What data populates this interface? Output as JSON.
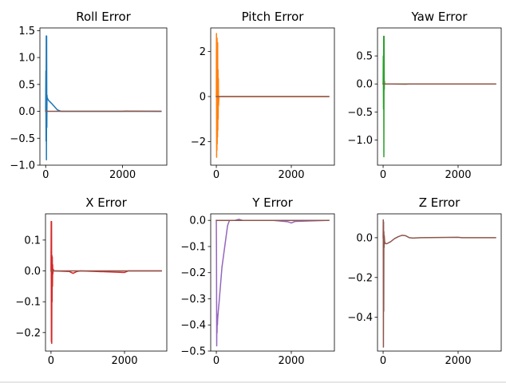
{
  "chart_data": [
    {
      "type": "line",
      "title": "Roll Error",
      "xlim": [
        -150,
        3150
      ],
      "ylim": [
        -1.0,
        1.55
      ],
      "xticks": [
        0,
        2000
      ],
      "yticks": [
        -1.0,
        -0.5,
        0.0,
        0.5,
        1.0,
        1.5
      ],
      "ytick_labels": [
        "−1.0",
        "−0.5",
        "0.0",
        "0.5",
        "1.0",
        "1.5"
      ],
      "series": [
        {
          "color": "#1f77b4",
          "x": [
            0,
            5,
            10,
            15,
            20,
            25,
            30,
            35,
            40,
            45,
            50,
            60,
            80,
            150,
            300,
            400,
            3000
          ],
          "y": [
            0,
            0.75,
            -0.55,
            1.4,
            -0.9,
            1.4,
            -0.3,
            0.3,
            0.25,
            0.25,
            0.24,
            0.22,
            0.2,
            0.15,
            0.03,
            0.0,
            0.0
          ]
        },
        {
          "color": "#8c564b",
          "x": [
            0,
            500,
            1000,
            2000,
            2050,
            3000
          ],
          "y": [
            0.0,
            0.0,
            0.0,
            0.0,
            0.005,
            0.0
          ]
        }
      ]
    },
    {
      "type": "line",
      "title": "Pitch Error",
      "xlim": [
        -150,
        3150
      ],
      "ylim": [
        -3.05,
        3.05
      ],
      "xticks": [
        0,
        2000
      ],
      "yticks": [
        -2,
        0,
        2
      ],
      "ytick_labels": [
        "−2",
        "0",
        "2"
      ],
      "series": [
        {
          "color": "#ff7f0e",
          "x": [
            0,
            4,
            8,
            12,
            16,
            20,
            24,
            28,
            32,
            36,
            40,
            45,
            50,
            55,
            60,
            70,
            3000
          ],
          "y": [
            0,
            2.8,
            -2.7,
            2.5,
            -2.4,
            2.6,
            -2.1,
            2.0,
            -1.8,
            2.4,
            -1.5,
            1.2,
            -1.0,
            0.8,
            -0.4,
            0.0,
            0.0
          ]
        },
        {
          "color": "#8c564b",
          "x": [
            0,
            3000
          ],
          "y": [
            0.0,
            0.0
          ]
        }
      ]
    },
    {
      "type": "line",
      "title": "Yaw Error",
      "xlim": [
        -150,
        3150
      ],
      "ylim": [
        -1.45,
        1.0
      ],
      "xticks": [
        0,
        2000
      ],
      "yticks": [
        -1.0,
        -0.5,
        0.0,
        0.5
      ],
      "ytick_labels": [
        "−1.0",
        "−0.5",
        "0.0",
        "0.5"
      ],
      "series": [
        {
          "color": "#2ca02c",
          "x": [
            0,
            5,
            10,
            15,
            20,
            25,
            30,
            35,
            40,
            60,
            100,
            3000
          ],
          "y": [
            0,
            0.5,
            -0.45,
            0.85,
            -1.3,
            0.85,
            -0.1,
            0.05,
            0.0,
            0.0,
            0.0,
            0.0
          ]
        },
        {
          "color": "#8c564b",
          "x": [
            0,
            200,
            600,
            700,
            1000,
            2000,
            3000
          ],
          "y": [
            0.0,
            0.0,
            -0.005,
            0.0,
            0.0,
            0.0,
            0.0
          ]
        }
      ]
    },
    {
      "type": "line",
      "title": "X Error",
      "xlim": [
        -150,
        3150
      ],
      "ylim": [
        -0.26,
        0.185
      ],
      "xticks": [
        0,
        2000
      ],
      "yticks": [
        -0.2,
        -0.1,
        0.0,
        0.1
      ],
      "ytick_labels": [
        "−0.2",
        "−0.1",
        "0.0",
        "0.1"
      ],
      "series": [
        {
          "color": "#d62728",
          "x": [
            0,
            5,
            10,
            15,
            20,
            25,
            30,
            35,
            40,
            45,
            50,
            60,
            80,
            500,
            600,
            700,
            800,
            2000,
            2100,
            3000
          ],
          "y": [
            0,
            0.16,
            -0.23,
            0.16,
            -0.235,
            0.05,
            -0.1,
            0.045,
            -0.05,
            0.02,
            -0.01,
            0.005,
            0.0,
            -0.002,
            -0.008,
            -0.002,
            0.0,
            -0.005,
            0.0,
            0.0
          ]
        },
        {
          "color": "#8c564b",
          "x": [
            0,
            3000
          ],
          "y": [
            0.0,
            0.0
          ]
        }
      ]
    },
    {
      "type": "line",
      "title": "Y Error",
      "xlim": [
        -150,
        3150
      ],
      "ylim": [
        -0.5,
        0.025
      ],
      "xticks": [
        0,
        2000
      ],
      "yticks": [
        -0.5,
        -0.4,
        -0.3,
        -0.2,
        -0.1,
        0.0
      ],
      "ytick_labels": [
        "−0.5",
        "−0.4",
        "−0.3",
        "−0.2",
        "−0.1",
        "0.0"
      ],
      "series": [
        {
          "color": "#9467bd",
          "x": [
            0,
            5,
            10,
            15,
            20,
            25,
            30,
            35,
            40,
            50,
            70,
            150,
            300,
            350,
            500,
            600,
            700,
            1500,
            1900,
            2000,
            2100,
            3000
          ],
          "y": [
            0,
            -0.13,
            -0.48,
            -0.38,
            -0.43,
            -0.36,
            -0.4,
            -0.38,
            -0.37,
            -0.35,
            -0.32,
            -0.18,
            -0.02,
            0.0,
            0.0,
            0.004,
            0.0,
            0.0,
            -0.005,
            -0.01,
            -0.004,
            0.0
          ]
        },
        {
          "color": "#8c564b",
          "x": [
            0,
            3000
          ],
          "y": [
            0.0,
            0.0
          ]
        }
      ]
    },
    {
      "type": "line",
      "title": "Z Error",
      "xlim": [
        -150,
        3150
      ],
      "ylim": [
        -0.57,
        0.12
      ],
      "xticks": [
        0,
        2000
      ],
      "yticks": [
        -0.4,
        -0.2,
        0.0
      ],
      "ytick_labels": [
        "−0.4",
        "−0.2",
        "0.0"
      ],
      "series": [
        {
          "color": "#8c564b",
          "x": [
            0,
            4,
            8,
            12,
            16,
            20,
            25,
            30,
            40,
            60,
            100,
            200,
            300,
            400,
            500,
            600,
            700,
            800,
            1000,
            2000,
            2100,
            3000
          ],
          "y": [
            0,
            0.09,
            -0.55,
            0.08,
            -0.37,
            0.03,
            -0.05,
            0.01,
            -0.02,
            -0.03,
            -0.03,
            -0.02,
            -0.005,
            0.005,
            0.012,
            0.01,
            0.0,
            -0.002,
            0.0,
            0.002,
            0.0,
            0.0
          ]
        }
      ]
    }
  ]
}
